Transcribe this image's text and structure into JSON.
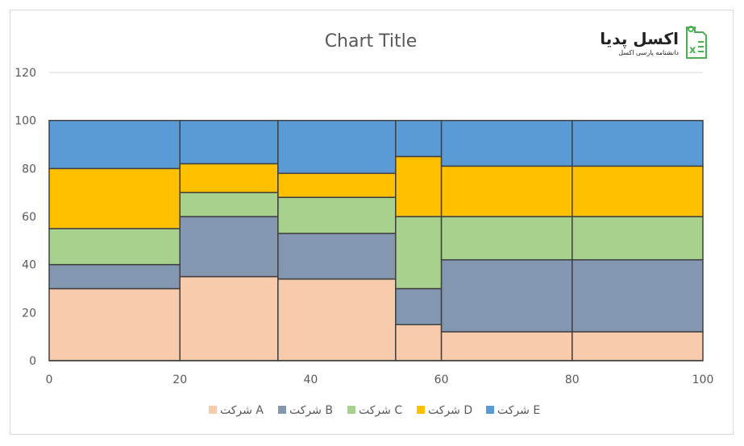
{
  "chart_data": {
    "type": "mekko",
    "title": "Chart Title",
    "xlim": [
      0,
      100
    ],
    "ylim": [
      0,
      120
    ],
    "x_ticks": [
      0,
      20,
      40,
      60,
      80,
      100
    ],
    "y_ticks": [
      0,
      20,
      40,
      60,
      80,
      100,
      120
    ],
    "grid": "horizontal-top",
    "legend_position": "bottom",
    "columns": [
      {
        "x_start": 0,
        "x_end": 20
      },
      {
        "x_start": 20,
        "x_end": 35
      },
      {
        "x_start": 35,
        "x_end": 53
      },
      {
        "x_start": 53,
        "x_end": 60
      },
      {
        "x_start": 60,
        "x_end": 80
      },
      {
        "x_start": 80,
        "x_end": 100
      }
    ],
    "series": [
      {
        "name": "شرکت A",
        "color": "#f8cbad",
        "values": [
          30,
          35,
          34,
          15,
          12,
          12
        ]
      },
      {
        "name": "شرکت B",
        "color": "#8497b0",
        "values": [
          10,
          25,
          19,
          15,
          30,
          30
        ]
      },
      {
        "name": "شرکت C",
        "color": "#a9d18e",
        "values": [
          15,
          10,
          15,
          30,
          18,
          18
        ]
      },
      {
        "name": "شرکت D",
        "color": "#ffc000",
        "values": [
          25,
          12,
          10,
          25,
          21,
          21
        ]
      },
      {
        "name": "شرکت E",
        "color": "#5b9bd5",
        "values": [
          20,
          18,
          22,
          15,
          19,
          19
        ]
      }
    ]
  },
  "logo": {
    "title": "اکسل پدیا",
    "subtitle": "دانشنامه پارسی اکسل",
    "icon": "excel-book-icon",
    "accent": "#4caf50"
  }
}
